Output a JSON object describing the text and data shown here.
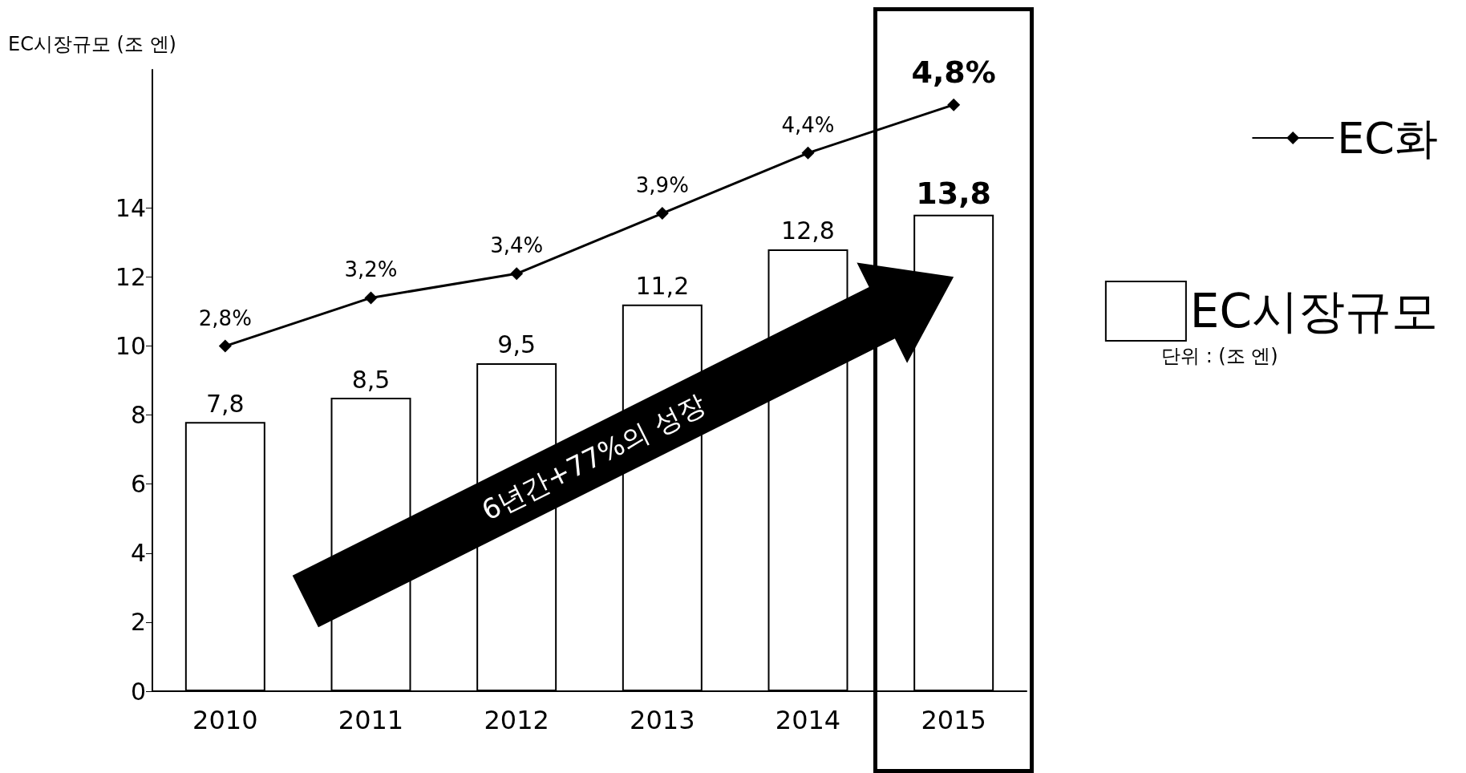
{
  "chart_data": {
    "type": "bar",
    "ylabel": "EC시장규모 (조 엔)",
    "categories": [
      "2010",
      "2011",
      "2012",
      "2013",
      "2014",
      "2015"
    ],
    "series": [
      {
        "name": "EC시장규모",
        "color": "#ffffff",
        "values": [
          7.8,
          8.5,
          9.5,
          11.2,
          12.8,
          13.8
        ],
        "value_labels": [
          "7,8",
          "8,5",
          "9,5",
          "11,2",
          "12,8",
          "13,8"
        ]
      },
      {
        "name": "EC화",
        "type": "line",
        "axis": "y2",
        "color": "#000000",
        "values": [
          2.8,
          3.2,
          3.4,
          3.9,
          4.4,
          4.8
        ],
        "value_labels": [
          "2,8%",
          "3,2%",
          "3,4%",
          "3,9%",
          "4,4%",
          "4,8%"
        ]
      }
    ],
    "ylim": [
      0,
      18
    ],
    "yticks": [
      0,
      2,
      4,
      6,
      8,
      10,
      12,
      14
    ],
    "y2lim": [
      -0.06,
      5.09
    ],
    "tick_labels": "xy",
    "marker": "diamond",
    "line_style": "solid",
    "grid": false,
    "legend": "right",
    "annotations": [
      "6년간+77%의 성장",
      "단위 : (조 엔)"
    ]
  }
}
